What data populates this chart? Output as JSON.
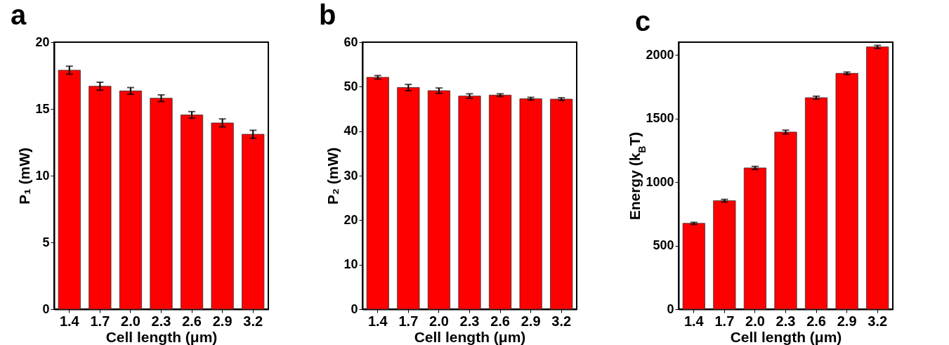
{
  "chart_data": [
    {
      "type": "bar",
      "title": "a",
      "xlabel": "Cell length (μm)",
      "ylabel": "P₁ (mW)",
      "categories": [
        "1.4",
        "1.7",
        "2.0",
        "2.3",
        "2.6",
        "2.9",
        "3.2"
      ],
      "values": [
        17.9,
        16.7,
        16.35,
        15.8,
        14.55,
        13.95,
        13.1
      ],
      "errors": [
        0.3,
        0.3,
        0.25,
        0.25,
        0.25,
        0.3,
        0.3
      ],
      "color": "#ff0000",
      "ylim": [
        0,
        20
      ],
      "yticks": [
        0,
        5,
        10,
        15,
        20
      ]
    },
    {
      "type": "bar",
      "title": "b",
      "xlabel": "Cell length (μm)",
      "ylabel": "P₂ (mW)",
      "categories": [
        "1.4",
        "1.7",
        "2.0",
        "2.3",
        "2.6",
        "2.9",
        "3.2"
      ],
      "values": [
        52.1,
        49.8,
        49.1,
        47.9,
        48.1,
        47.3,
        47.2
      ],
      "errors": [
        0.4,
        0.7,
        0.6,
        0.5,
        0.3,
        0.3,
        0.3
      ],
      "color": "#ff0000",
      "ylim": [
        0,
        60
      ],
      "yticks": [
        0,
        10,
        20,
        30,
        40,
        50,
        60
      ]
    },
    {
      "type": "bar",
      "title": "c",
      "xlabel": "Cell length (μm)",
      "ylabel": "Energy (k$_{B}$T)",
      "categories": [
        "1.4",
        "1.7",
        "2.0",
        "2.3",
        "2.6",
        "2.9",
        "3.2"
      ],
      "values": [
        675,
        853,
        1111,
        1393,
        1663,
        1855,
        2063
      ],
      "errors": [
        8,
        10,
        12,
        15,
        12,
        10,
        12
      ],
      "color": "#ff0000",
      "ylim": [
        0,
        2100
      ],
      "yticks": [
        0,
        500,
        1000,
        1500,
        2000
      ]
    }
  ]
}
